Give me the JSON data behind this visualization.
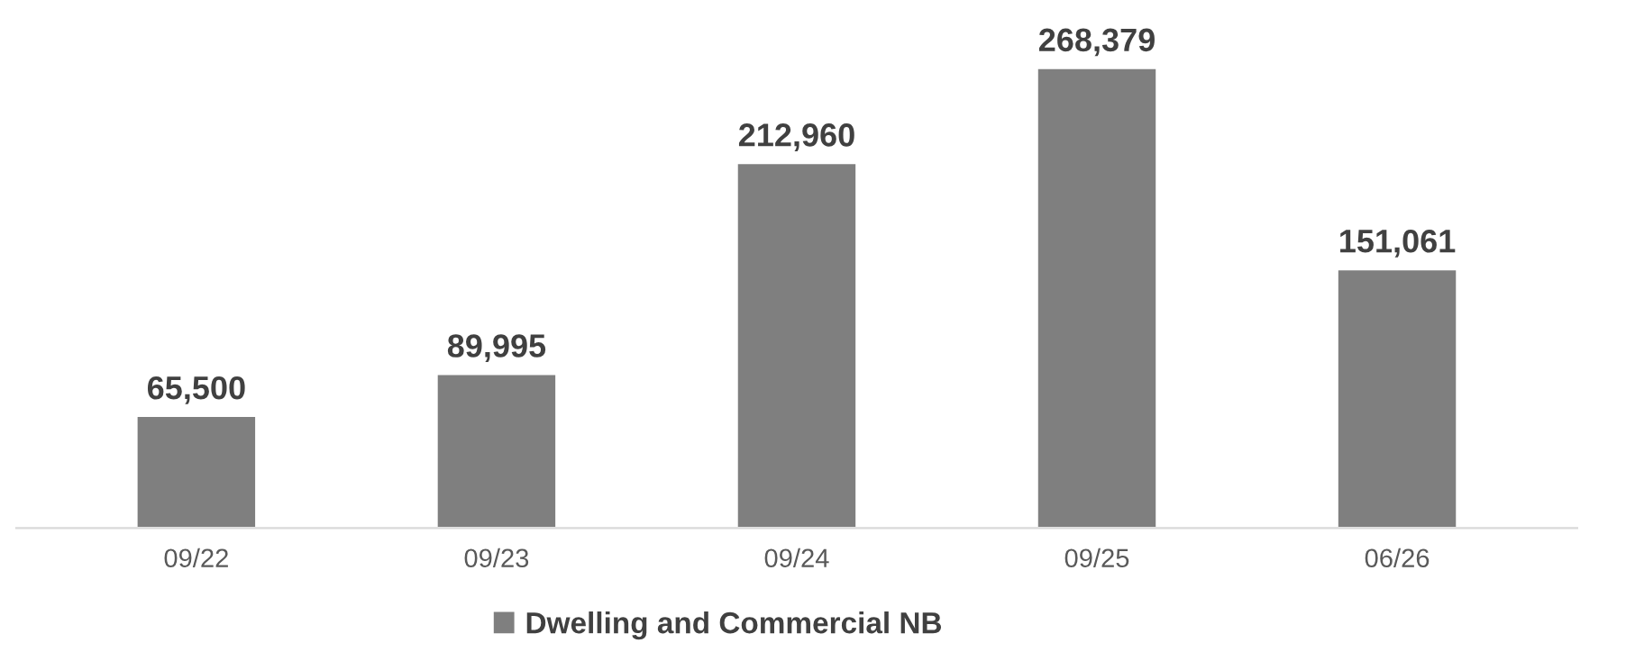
{
  "chart_data": {
    "type": "bar",
    "categories": [
      "09/22",
      "09/23",
      "09/24",
      "09/25",
      "06/26"
    ],
    "series": [
      {
        "name": "Dwelling and Commercial NB",
        "color": "#7f7f7f",
        "values": [
          65500,
          89995,
          212960,
          268379,
          151061
        ],
        "value_labels": [
          "65,500",
          "89,995",
          "212,960",
          "268,379",
          "151,061"
        ]
      }
    ],
    "legend": "bottom",
    "grid": false,
    "tick_labels": "x"
  }
}
